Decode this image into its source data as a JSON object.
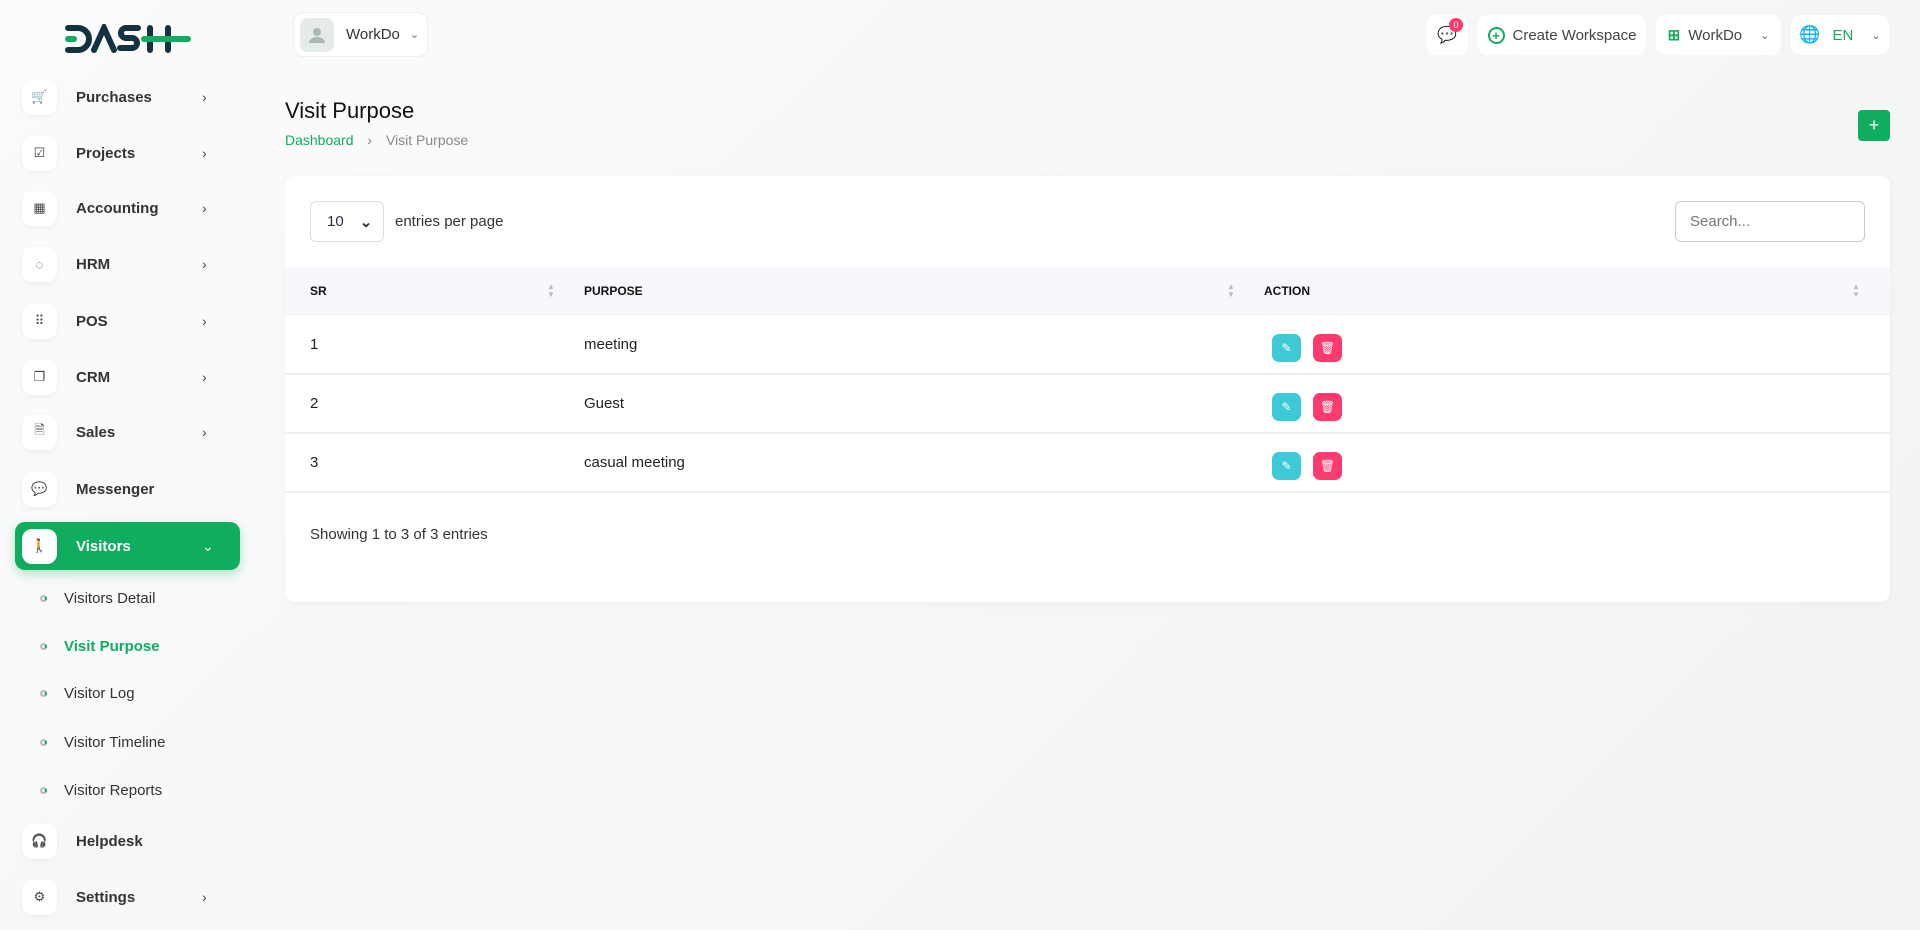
{
  "brand": {
    "logo_text": "DASH",
    "accent": "#11ad5e"
  },
  "header": {
    "workspace_user": "WorkDo",
    "notifications_count": "0",
    "create_workspace": "Create Workspace",
    "workspace_selector": "WorkDo",
    "language": "EN"
  },
  "sidebar": {
    "items": [
      {
        "label": "Purchases",
        "icon": "cart-icon",
        "glyph": "🛒",
        "arrow": true
      },
      {
        "label": "Projects",
        "icon": "checkbox-icon",
        "glyph": "☑",
        "arrow": true
      },
      {
        "label": "Accounting",
        "icon": "grid-plus-icon",
        "glyph": "▦",
        "arrow": true
      },
      {
        "label": "HRM",
        "icon": "users-circle-icon",
        "glyph": "◌",
        "arrow": true
      },
      {
        "label": "POS",
        "icon": "dots-grid-icon",
        "glyph": "⠿",
        "arrow": true
      },
      {
        "label": "CRM",
        "icon": "layers-icon",
        "glyph": "❐",
        "arrow": true
      },
      {
        "label": "Sales",
        "icon": "file-icon",
        "glyph": "🗎",
        "arrow": true
      },
      {
        "label": "Messenger",
        "icon": "chat-icon",
        "glyph": "💬",
        "arrow": false
      },
      {
        "label": "Visitors",
        "icon": "person-icon",
        "glyph": "🚶",
        "arrow": true,
        "active": true
      }
    ],
    "sub_items": [
      {
        "label": "Visitors Detail"
      },
      {
        "label": "Visit Purpose",
        "active": true
      },
      {
        "label": "Visitor Log"
      },
      {
        "label": "Visitor Timeline"
      },
      {
        "label": "Visitor Reports"
      }
    ],
    "bottom_items": [
      {
        "label": "Helpdesk",
        "icon": "headphones-icon",
        "glyph": "🎧",
        "arrow": false
      },
      {
        "label": "Settings",
        "icon": "gear-icon",
        "glyph": "⚙",
        "arrow": true
      }
    ]
  },
  "page": {
    "title": "Visit Purpose",
    "breadcrumb": [
      "Dashboard",
      "Visit Purpose"
    ]
  },
  "table": {
    "entries_value": "10",
    "entries_label": "entries per page",
    "search_placeholder": "Search...",
    "columns": [
      "SR",
      "PURPOSE",
      "ACTION"
    ],
    "rows": [
      [
        "1",
        "meeting"
      ],
      [
        "2",
        "Guest"
      ],
      [
        "3",
        "casual meeting"
      ]
    ],
    "footer": "Showing 1 to 3 of 3 entries"
  }
}
